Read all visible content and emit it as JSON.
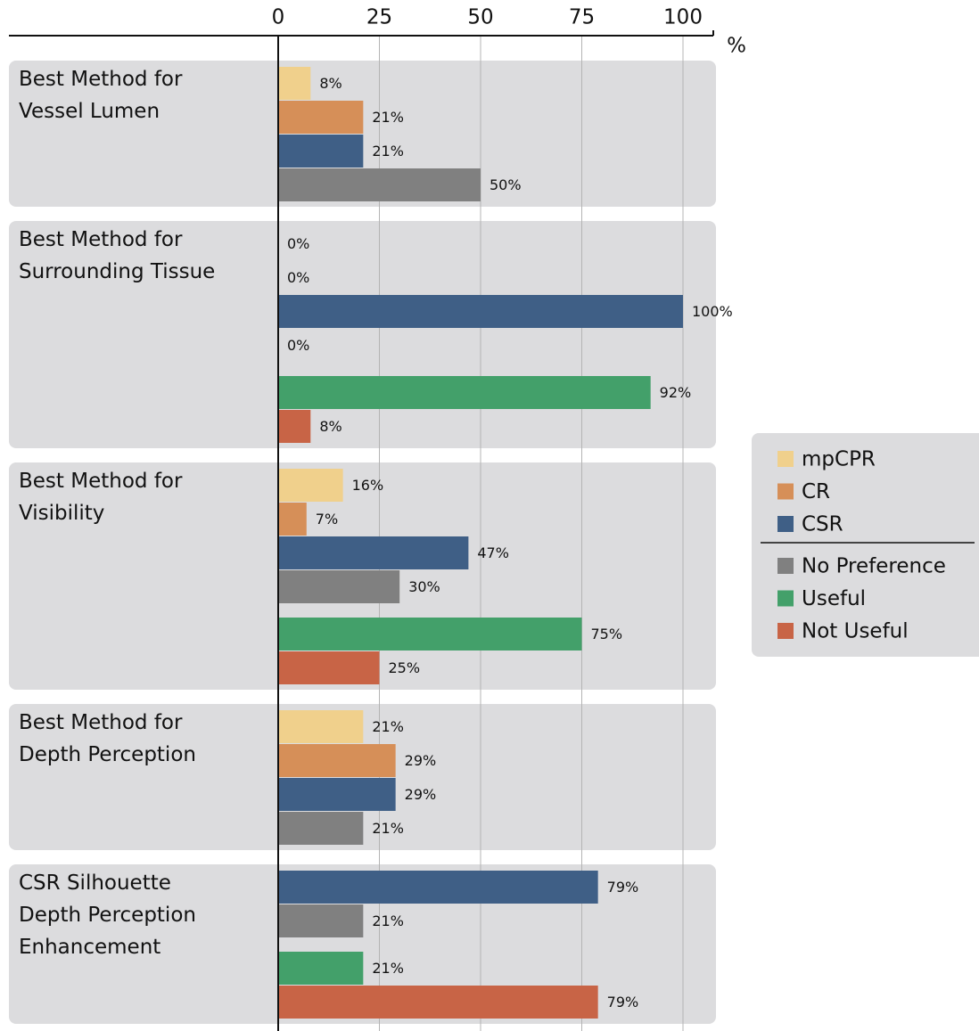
{
  "chart_data": {
    "type": "bar",
    "orientation": "horizontal",
    "categories": [
      "Best Method for\nVessel Lumen",
      "Best Method for\nSurrounding Tissue",
      "Best Method for\nVisibility",
      "Best Method for\nDepth Perception",
      "CSR Silhouette\nDepth Perception\nEnhancement"
    ],
    "series": [
      {
        "name": "mpCPR",
        "color": "#f0d08c",
        "values": [
          8,
          0,
          16,
          21,
          null
        ],
        "value_labels": [
          "8%",
          "0%",
          "16%",
          "21%",
          null
        ]
      },
      {
        "name": "CR",
        "color": "#d68f58",
        "values": [
          21,
          0,
          7,
          29,
          null
        ],
        "value_labels": [
          "21%",
          "0%",
          "7%",
          "29%",
          null
        ]
      },
      {
        "name": "CSR",
        "color": "#3f5f86",
        "values": [
          21,
          100,
          47,
          29,
          79
        ],
        "value_labels": [
          "21%",
          "100%",
          "47%",
          "29%",
          "79%"
        ]
      },
      {
        "name": "No Preference",
        "color": "#808080",
        "values": [
          50,
          0,
          30,
          21,
          21
        ],
        "value_labels": [
          "50%",
          "0%",
          "30%",
          "21%",
          "21%"
        ]
      },
      {
        "name": "Useful",
        "color": "#43a06a",
        "values": [
          null,
          92,
          75,
          null,
          21
        ],
        "value_labels": [
          null,
          "92%",
          "75%",
          null,
          "21%"
        ]
      },
      {
        "name": "Not Useful",
        "color": "#c86446",
        "values": [
          null,
          8,
          25,
          null,
          79
        ],
        "value_labels": [
          null,
          "8%",
          "25%",
          null,
          "79%"
        ]
      }
    ],
    "xlabel": "%",
    "xlim": [
      0,
      100
    ],
    "xticks": [
      0,
      25,
      50,
      75,
      100
    ],
    "grid": true
  }
}
